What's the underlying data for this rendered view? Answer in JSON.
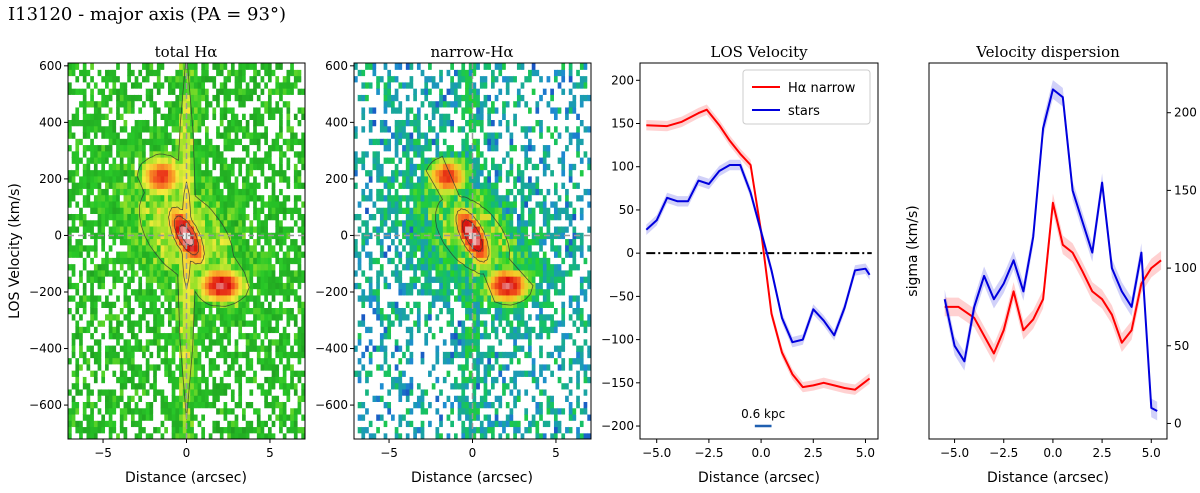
{
  "figure_title": "I13120 - major axis (PA = 93°)",
  "chart_data": [
    {
      "type": "heatmap",
      "title": "total Hα",
      "xlabel": "Distance (arcsec)",
      "ylabel": "LOS Velocity (km/s)",
      "xlim": [
        -7.1,
        7.1
      ],
      "ylim": [
        -720,
        610
      ],
      "xticks": [
        -5,
        0,
        5
      ],
      "xtick_labels": [
        "−5",
        "0",
        "5"
      ],
      "yticks": [
        600,
        400,
        200,
        0,
        -200,
        -400,
        -600
      ],
      "ytick_labels": [
        "600",
        "400",
        "200",
        "0",
        "−200",
        "−400",
        "−600"
      ],
      "reference_lines": {
        "x": 0,
        "y": 0
      },
      "colormap": "green-yellow-red-white (low to high flux)"
    },
    {
      "type": "heatmap",
      "title": "narrow-Hα",
      "xlabel": "Distance (arcsec)",
      "xlim": [
        -7.1,
        7.1
      ],
      "ylim": [
        -720,
        610
      ],
      "xticks": [
        -5,
        0,
        5
      ],
      "xtick_labels": [
        "−5",
        "0",
        "5"
      ],
      "yticks": [
        600,
        400,
        200,
        0,
        -200,
        -400,
        -600
      ],
      "ytick_labels": [
        "600",
        "400",
        "200",
        "0",
        "−200",
        "−400",
        "−600"
      ],
      "reference_lines": {
        "x": 0,
        "y": 0
      },
      "colormap": "blue-green-yellow-red-white (low to high flux)"
    },
    {
      "type": "line",
      "title": "LOS Velocity",
      "xlabel": "Distance (arcsec)",
      "ylabel": "",
      "xlim": [
        -5.8,
        5.6
      ],
      "ylim": [
        -215,
        220
      ],
      "xticks": [
        -5,
        -2.5,
        0,
        2.5,
        5
      ],
      "xtick_labels": [
        "−5.0",
        "−2.5",
        "0.0",
        "2.5",
        "5.0"
      ],
      "yticks": [
        200,
        150,
        100,
        50,
        0,
        -50,
        -100,
        -150,
        -200
      ],
      "ytick_labels": [
        "200",
        "150",
        "100",
        "50",
        "0",
        "−50",
        "−100",
        "−150",
        "−200"
      ],
      "zero_line": 0,
      "scalebar": {
        "label": "0.6 kpc",
        "x0": -0.3,
        "x1": 0.5,
        "y": -200
      },
      "legend": [
        "Hα narrow",
        "stars"
      ],
      "series": [
        {
          "name": "Hα narrow",
          "color": "#ff0000",
          "x": [
            -5.5,
            -4.5,
            -3.8,
            -3,
            -2.6,
            -2,
            -1.5,
            -1,
            -0.5,
            0,
            0.5,
            1,
            1.5,
            2,
            2.5,
            3,
            3.5,
            4,
            4.5,
            5.2
          ],
          "y": [
            148,
            147,
            152,
            162,
            166,
            148,
            130,
            115,
            102,
            25,
            -70,
            -115,
            -140,
            -155,
            -153,
            -150,
            -153,
            -156,
            -158,
            -145
          ]
        },
        {
          "name": "stars",
          "color": "#0000dd",
          "x": [
            -5.5,
            -5,
            -4.5,
            -4,
            -3.5,
            -3,
            -2.5,
            -2,
            -1.5,
            -1,
            -0.5,
            0,
            0.5,
            1,
            1.5,
            2,
            2.5,
            3,
            3.5,
            4,
            4.5,
            5,
            5.2
          ],
          "y": [
            27,
            38,
            64,
            60,
            60,
            84,
            80,
            95,
            102,
            102,
            70,
            25,
            -20,
            -75,
            -103,
            -100,
            -65,
            -78,
            -95,
            -63,
            -20,
            -18,
            -25
          ]
        }
      ]
    },
    {
      "type": "line",
      "title": "Velocity dispersion",
      "xlabel": "Distance (arcsec)",
      "ylabel": "sigma (km/s)",
      "y_axis_side": "right",
      "xlim": [
        -6.3,
        5.8
      ],
      "ylim": [
        -10,
        232
      ],
      "xticks": [
        -5,
        -2.5,
        0,
        2.5,
        5
      ],
      "xtick_labels": [
        "−5.0",
        "−2.5",
        "0.0",
        "2.5",
        "5.0"
      ],
      "yticks": [
        200,
        150,
        100,
        50,
        0
      ],
      "ytick_labels": [
        "200",
        "150",
        "100",
        "50",
        "0"
      ],
      "series": [
        {
          "name": "Hα narrow",
          "color": "#ff0000",
          "x": [
            -5.5,
            -4.8,
            -4,
            -3,
            -2.5,
            -2,
            -1.5,
            -1,
            -0.5,
            0,
            0.5,
            1,
            1.5,
            2,
            2.5,
            3,
            3.5,
            4,
            4.5,
            5,
            5.5
          ],
          "y": [
            75,
            75,
            68,
            45,
            60,
            85,
            60,
            67,
            80,
            142,
            115,
            110,
            98,
            85,
            80,
            70,
            52,
            60,
            90,
            100,
            105
          ]
        },
        {
          "name": "stars",
          "color": "#0000dd",
          "x": [
            -5.5,
            -5,
            -4.5,
            -4,
            -3.5,
            -3,
            -2.5,
            -2,
            -1.5,
            -1,
            -0.5,
            0,
            0.5,
            1,
            1.5,
            2,
            2.5,
            3,
            3.5,
            4,
            4.5,
            5,
            5.3
          ],
          "y": [
            80,
            50,
            40,
            75,
            95,
            80,
            90,
            105,
            85,
            120,
            190,
            215,
            210,
            150,
            130,
            110,
            155,
            100,
            85,
            75,
            110,
            10,
            8
          ]
        }
      ]
    }
  ]
}
